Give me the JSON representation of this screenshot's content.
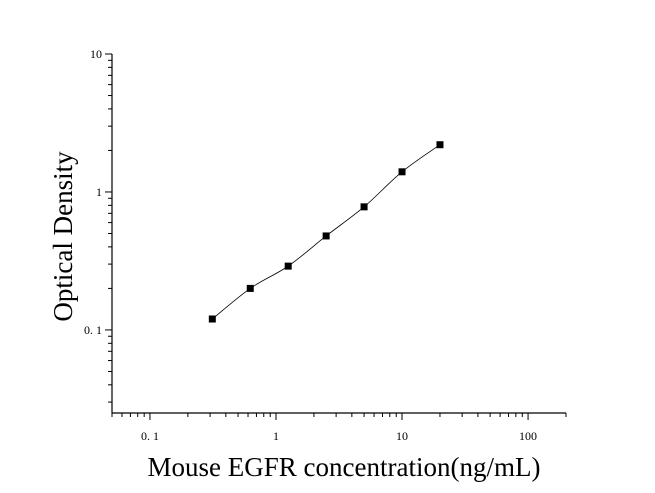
{
  "chart_data": {
    "type": "scatter",
    "xlabel": "Mouse EGFR concentration(ng/mL)",
    "ylabel": "Optical Density",
    "x_scale": "log",
    "y_scale": "log",
    "xlim": [
      0.05,
      200
    ],
    "ylim": [
      0.025,
      10
    ],
    "x_ticks": [
      {
        "value": 0.1,
        "label": "0. 1"
      },
      {
        "value": 1,
        "label": "1"
      },
      {
        "value": 10,
        "label": "10"
      },
      {
        "value": 100,
        "label": "100"
      }
    ],
    "y_ticks": [
      {
        "value": 0.1,
        "label": "0. 1"
      },
      {
        "value": 1,
        "label": "1"
      },
      {
        "value": 10,
        "label": "10"
      }
    ],
    "series": [
      {
        "x": [
          0.3125,
          0.625,
          1.25,
          2.5,
          5,
          10,
          20
        ],
        "y": [
          0.12,
          0.2,
          0.29,
          0.48,
          0.78,
          1.4,
          2.2
        ],
        "marker": "square",
        "fit_line": true
      }
    ],
    "grid": false,
    "legend": false
  }
}
